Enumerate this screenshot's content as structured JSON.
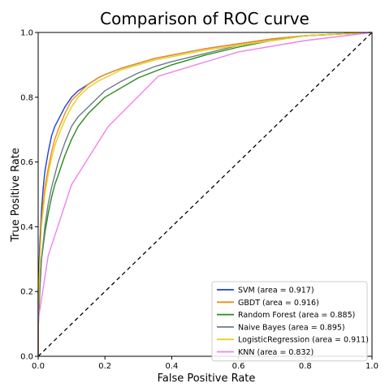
{
  "chart_data": {
    "type": "line",
    "title": "Comparison of ROC curve",
    "xlabel": "False Positive Rate",
    "ylabel": "True Positive Rate",
    "xlim": [
      0.0,
      1.0
    ],
    "ylim": [
      0.0,
      1.0
    ],
    "xticks": [
      "0.0",
      "0.2",
      "0.4",
      "0.6",
      "0.8",
      "1.0"
    ],
    "yticks": [
      "0.0",
      "0.2",
      "0.4",
      "0.6",
      "0.8",
      "1.0"
    ],
    "grid": false,
    "legend_position": "lower-right",
    "diagonal": {
      "x": [
        0,
        1
      ],
      "y": [
        0,
        1
      ],
      "color": "#000000",
      "style": "dashed"
    },
    "series": [
      {
        "name": "SVM (area = 0.917)",
        "color": "#1f3fd6",
        "x": [
          0,
          0.0,
          0.005,
          0.01,
          0.015,
          0.02,
          0.03,
          0.04,
          0.05,
          0.06,
          0.08,
          0.1,
          0.12,
          0.15,
          0.18,
          0.2,
          0.25,
          0.3,
          0.35,
          0.4,
          0.5,
          0.6,
          0.7,
          0.8,
          0.9,
          1.0
        ],
        "y": [
          0,
          0.2,
          0.35,
          0.45,
          0.52,
          0.57,
          0.63,
          0.68,
          0.71,
          0.73,
          0.77,
          0.8,
          0.82,
          0.84,
          0.86,
          0.87,
          0.89,
          0.905,
          0.92,
          0.93,
          0.95,
          0.965,
          0.98,
          0.99,
          0.995,
          1.0
        ]
      },
      {
        "name": "GBDT (area = 0.916)",
        "color": "#f08c1a",
        "x": [
          0,
          0.0,
          0.005,
          0.01,
          0.02,
          0.03,
          0.04,
          0.05,
          0.06,
          0.08,
          0.1,
          0.12,
          0.15,
          0.18,
          0.2,
          0.25,
          0.3,
          0.35,
          0.4,
          0.5,
          0.6,
          0.7,
          0.8,
          0.9,
          1.0
        ],
        "y": [
          0,
          0.1,
          0.3,
          0.42,
          0.52,
          0.58,
          0.63,
          0.67,
          0.7,
          0.75,
          0.79,
          0.81,
          0.84,
          0.86,
          0.87,
          0.89,
          0.905,
          0.92,
          0.93,
          0.95,
          0.965,
          0.98,
          0.99,
          0.995,
          1.0
        ]
      },
      {
        "name": "Random Forest (area = 0.885)",
        "color": "#2a8a1a",
        "x": [
          0,
          0.0,
          0.005,
          0.01,
          0.02,
          0.03,
          0.04,
          0.05,
          0.06,
          0.08,
          0.1,
          0.12,
          0.15,
          0.18,
          0.2,
          0.25,
          0.3,
          0.35,
          0.4,
          0.5,
          0.6,
          0.7,
          0.8,
          0.9,
          1.0
        ],
        "y": [
          0,
          0.1,
          0.22,
          0.3,
          0.38,
          0.44,
          0.49,
          0.53,
          0.56,
          0.62,
          0.67,
          0.71,
          0.75,
          0.78,
          0.8,
          0.83,
          0.86,
          0.88,
          0.9,
          0.93,
          0.955,
          0.975,
          0.99,
          0.995,
          1.0
        ]
      },
      {
        "name": "Naive Bayes (area = 0.895)",
        "color": "#6b7b8c",
        "x": [
          0,
          0.0,
          0.005,
          0.01,
          0.02,
          0.03,
          0.04,
          0.05,
          0.06,
          0.08,
          0.1,
          0.12,
          0.15,
          0.18,
          0.2,
          0.25,
          0.3,
          0.35,
          0.4,
          0.5,
          0.6,
          0.7,
          0.8,
          0.9,
          1.0
        ],
        "y": [
          0,
          0.08,
          0.2,
          0.3,
          0.4,
          0.47,
          0.52,
          0.56,
          0.6,
          0.66,
          0.71,
          0.74,
          0.77,
          0.8,
          0.82,
          0.85,
          0.875,
          0.895,
          0.91,
          0.935,
          0.96,
          0.975,
          0.99,
          0.995,
          1.0
        ]
      },
      {
        "name": "LogisticRegression (area = 0.911)",
        "color": "#e6d21a",
        "x": [
          0,
          0.0,
          0.005,
          0.01,
          0.02,
          0.03,
          0.04,
          0.05,
          0.06,
          0.08,
          0.1,
          0.12,
          0.15,
          0.18,
          0.2,
          0.25,
          0.3,
          0.35,
          0.4,
          0.5,
          0.6,
          0.7,
          0.8,
          0.9,
          1.0
        ],
        "y": [
          0,
          0.12,
          0.3,
          0.4,
          0.5,
          0.56,
          0.61,
          0.65,
          0.68,
          0.73,
          0.77,
          0.8,
          0.83,
          0.85,
          0.86,
          0.885,
          0.9,
          0.915,
          0.925,
          0.945,
          0.96,
          0.975,
          0.99,
          0.995,
          1.0
        ]
      },
      {
        "name": "KNN (area = 0.832)",
        "color": "#ee82ee",
        "x": [
          0,
          0.0,
          0.03,
          0.1,
          0.21,
          0.36,
          0.6,
          0.8,
          1.0
        ],
        "y": [
          0,
          0.11,
          0.31,
          0.53,
          0.71,
          0.865,
          0.94,
          0.975,
          1.0
        ]
      }
    ]
  }
}
